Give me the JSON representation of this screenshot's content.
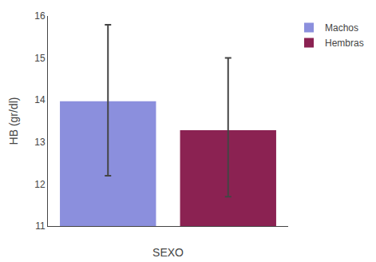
{
  "chart_data": {
    "type": "bar",
    "categories": [
      "Machos",
      "Hembras"
    ],
    "series": [
      {
        "name": "Machos",
        "color": "#8b8fdd",
        "values": [
          13.97,
          null
        ],
        "errors_upper": [
          1.82,
          null
        ],
        "errors_lower": [
          1.77,
          null
        ]
      },
      {
        "name": "Hembras",
        "color": "#8b2252",
        "values": [
          null,
          13.28
        ],
        "errors_upper": [
          null,
          1.72
        ],
        "errors_lower": [
          null,
          1.58
        ]
      }
    ],
    "xlabel": "SEXO",
    "ylabel": "HB (gr/dl)",
    "ylim": [
      11,
      16
    ],
    "yticks": [
      11,
      12,
      13,
      14,
      15,
      16
    ],
    "grid": false,
    "legend": "upper right",
    "tick_labels": "y"
  }
}
